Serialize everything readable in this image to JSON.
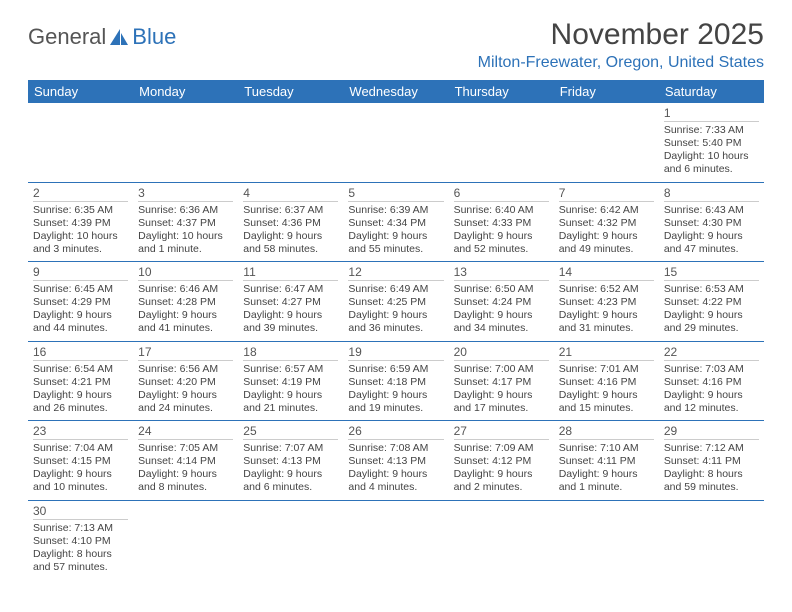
{
  "logo": {
    "general": "General",
    "blue": "Blue"
  },
  "header": {
    "month_title": "November 2025",
    "location": "Milton-Freewater, Oregon, United States"
  },
  "colors": {
    "header_bg": "#2d72b8",
    "accent": "#2d72b8",
    "text": "#444444"
  },
  "day_names": [
    "Sunday",
    "Monday",
    "Tuesday",
    "Wednesday",
    "Thursday",
    "Friday",
    "Saturday"
  ],
  "weeks": [
    [
      null,
      null,
      null,
      null,
      null,
      null,
      {
        "n": "1",
        "sr": "Sunrise: 7:33 AM",
        "ss": "Sunset: 5:40 PM",
        "d1": "Daylight: 10 hours",
        "d2": "and 6 minutes."
      }
    ],
    [
      {
        "n": "2",
        "sr": "Sunrise: 6:35 AM",
        "ss": "Sunset: 4:39 PM",
        "d1": "Daylight: 10 hours",
        "d2": "and 3 minutes."
      },
      {
        "n": "3",
        "sr": "Sunrise: 6:36 AM",
        "ss": "Sunset: 4:37 PM",
        "d1": "Daylight: 10 hours",
        "d2": "and 1 minute."
      },
      {
        "n": "4",
        "sr": "Sunrise: 6:37 AM",
        "ss": "Sunset: 4:36 PM",
        "d1": "Daylight: 9 hours",
        "d2": "and 58 minutes."
      },
      {
        "n": "5",
        "sr": "Sunrise: 6:39 AM",
        "ss": "Sunset: 4:34 PM",
        "d1": "Daylight: 9 hours",
        "d2": "and 55 minutes."
      },
      {
        "n": "6",
        "sr": "Sunrise: 6:40 AM",
        "ss": "Sunset: 4:33 PM",
        "d1": "Daylight: 9 hours",
        "d2": "and 52 minutes."
      },
      {
        "n": "7",
        "sr": "Sunrise: 6:42 AM",
        "ss": "Sunset: 4:32 PM",
        "d1": "Daylight: 9 hours",
        "d2": "and 49 minutes."
      },
      {
        "n": "8",
        "sr": "Sunrise: 6:43 AM",
        "ss": "Sunset: 4:30 PM",
        "d1": "Daylight: 9 hours",
        "d2": "and 47 minutes."
      }
    ],
    [
      {
        "n": "9",
        "sr": "Sunrise: 6:45 AM",
        "ss": "Sunset: 4:29 PM",
        "d1": "Daylight: 9 hours",
        "d2": "and 44 minutes."
      },
      {
        "n": "10",
        "sr": "Sunrise: 6:46 AM",
        "ss": "Sunset: 4:28 PM",
        "d1": "Daylight: 9 hours",
        "d2": "and 41 minutes."
      },
      {
        "n": "11",
        "sr": "Sunrise: 6:47 AM",
        "ss": "Sunset: 4:27 PM",
        "d1": "Daylight: 9 hours",
        "d2": "and 39 minutes."
      },
      {
        "n": "12",
        "sr": "Sunrise: 6:49 AM",
        "ss": "Sunset: 4:25 PM",
        "d1": "Daylight: 9 hours",
        "d2": "and 36 minutes."
      },
      {
        "n": "13",
        "sr": "Sunrise: 6:50 AM",
        "ss": "Sunset: 4:24 PM",
        "d1": "Daylight: 9 hours",
        "d2": "and 34 minutes."
      },
      {
        "n": "14",
        "sr": "Sunrise: 6:52 AM",
        "ss": "Sunset: 4:23 PM",
        "d1": "Daylight: 9 hours",
        "d2": "and 31 minutes."
      },
      {
        "n": "15",
        "sr": "Sunrise: 6:53 AM",
        "ss": "Sunset: 4:22 PM",
        "d1": "Daylight: 9 hours",
        "d2": "and 29 minutes."
      }
    ],
    [
      {
        "n": "16",
        "sr": "Sunrise: 6:54 AM",
        "ss": "Sunset: 4:21 PM",
        "d1": "Daylight: 9 hours",
        "d2": "and 26 minutes."
      },
      {
        "n": "17",
        "sr": "Sunrise: 6:56 AM",
        "ss": "Sunset: 4:20 PM",
        "d1": "Daylight: 9 hours",
        "d2": "and 24 minutes."
      },
      {
        "n": "18",
        "sr": "Sunrise: 6:57 AM",
        "ss": "Sunset: 4:19 PM",
        "d1": "Daylight: 9 hours",
        "d2": "and 21 minutes."
      },
      {
        "n": "19",
        "sr": "Sunrise: 6:59 AM",
        "ss": "Sunset: 4:18 PM",
        "d1": "Daylight: 9 hours",
        "d2": "and 19 minutes."
      },
      {
        "n": "20",
        "sr": "Sunrise: 7:00 AM",
        "ss": "Sunset: 4:17 PM",
        "d1": "Daylight: 9 hours",
        "d2": "and 17 minutes."
      },
      {
        "n": "21",
        "sr": "Sunrise: 7:01 AM",
        "ss": "Sunset: 4:16 PM",
        "d1": "Daylight: 9 hours",
        "d2": "and 15 minutes."
      },
      {
        "n": "22",
        "sr": "Sunrise: 7:03 AM",
        "ss": "Sunset: 4:16 PM",
        "d1": "Daylight: 9 hours",
        "d2": "and 12 minutes."
      }
    ],
    [
      {
        "n": "23",
        "sr": "Sunrise: 7:04 AM",
        "ss": "Sunset: 4:15 PM",
        "d1": "Daylight: 9 hours",
        "d2": "and 10 minutes."
      },
      {
        "n": "24",
        "sr": "Sunrise: 7:05 AM",
        "ss": "Sunset: 4:14 PM",
        "d1": "Daylight: 9 hours",
        "d2": "and 8 minutes."
      },
      {
        "n": "25",
        "sr": "Sunrise: 7:07 AM",
        "ss": "Sunset: 4:13 PM",
        "d1": "Daylight: 9 hours",
        "d2": "and 6 minutes."
      },
      {
        "n": "26",
        "sr": "Sunrise: 7:08 AM",
        "ss": "Sunset: 4:13 PM",
        "d1": "Daylight: 9 hours",
        "d2": "and 4 minutes."
      },
      {
        "n": "27",
        "sr": "Sunrise: 7:09 AM",
        "ss": "Sunset: 4:12 PM",
        "d1": "Daylight: 9 hours",
        "d2": "and 2 minutes."
      },
      {
        "n": "28",
        "sr": "Sunrise: 7:10 AM",
        "ss": "Sunset: 4:11 PM",
        "d1": "Daylight: 9 hours",
        "d2": "and 1 minute."
      },
      {
        "n": "29",
        "sr": "Sunrise: 7:12 AM",
        "ss": "Sunset: 4:11 PM",
        "d1": "Daylight: 8 hours",
        "d2": "and 59 minutes."
      }
    ],
    [
      {
        "n": "30",
        "sr": "Sunrise: 7:13 AM",
        "ss": "Sunset: 4:10 PM",
        "d1": "Daylight: 8 hours",
        "d2": "and 57 minutes."
      },
      null,
      null,
      null,
      null,
      null,
      null
    ]
  ]
}
